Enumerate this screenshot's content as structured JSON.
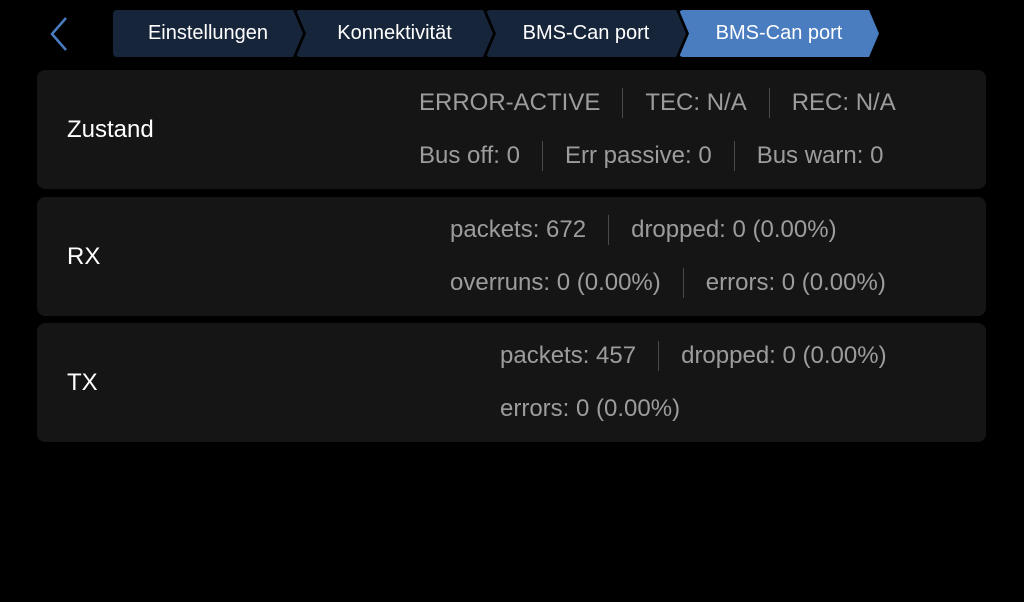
{
  "nav": {
    "back_icon": "chevron-left-icon",
    "accent": "#4a7cc0"
  },
  "breadcrumbs": [
    {
      "label": "Einstellungen"
    },
    {
      "label": "Konnektivität"
    },
    {
      "label": "BMS-Can port"
    },
    {
      "label": "BMS-Can port",
      "active": true
    }
  ],
  "panels": {
    "state": {
      "title": "Zustand",
      "row1": [
        "ERROR-ACTIVE",
        "TEC: N/A",
        "REC: N/A"
      ],
      "row2": [
        "Bus off: 0",
        "Err passive: 0",
        "Bus warn: 0"
      ]
    },
    "rx": {
      "title": "RX",
      "row1": [
        "packets: 672",
        "dropped: 0 (0.00%)"
      ],
      "row2": [
        "overruns: 0 (0.00%)",
        "errors: 0 (0.00%)"
      ]
    },
    "tx": {
      "title": "TX",
      "row1": [
        "packets: 457",
        "dropped: 0 (0.00%)"
      ],
      "row2": [
        "errors: 0 (0.00%)"
      ]
    }
  }
}
